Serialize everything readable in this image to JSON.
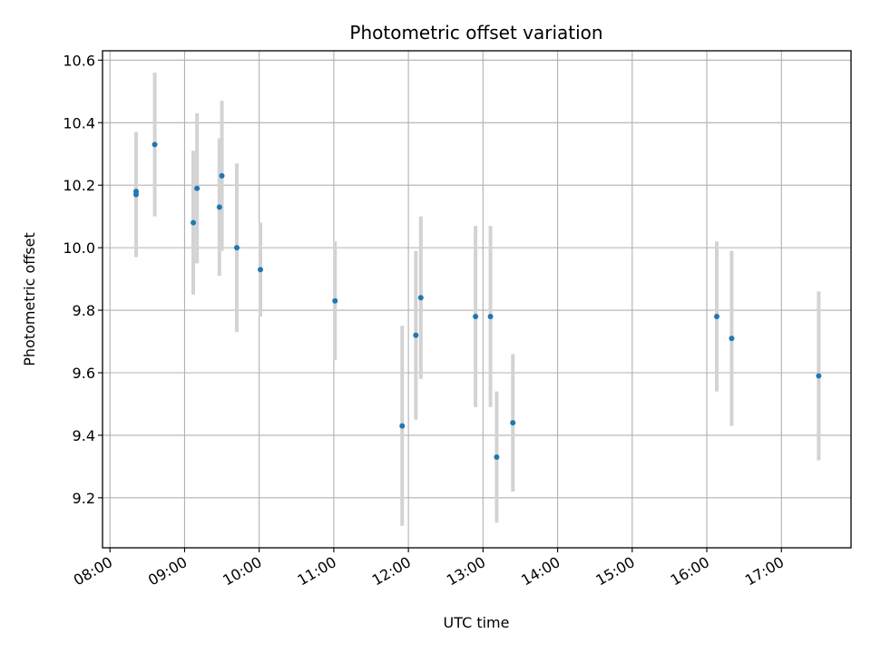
{
  "chart_data": {
    "type": "scatter",
    "title": "Photometric offset variation",
    "xlabel": "UTC time",
    "ylabel": "Photometric offset",
    "xlim": [
      "07:54",
      "17:56"
    ],
    "ylim": [
      9.04,
      10.63
    ],
    "x_ticks": [
      "08:00",
      "09:00",
      "10:00",
      "11:00",
      "12:00",
      "13:00",
      "14:00",
      "15:00",
      "16:00",
      "17:00"
    ],
    "y_ticks": [
      "9.2",
      "9.4",
      "9.6",
      "9.8",
      "10.0",
      "10.2",
      "10.4",
      "10.6"
    ],
    "grid": true,
    "marker_color": "#1f77b4",
    "errorbar_color": "#d3d3d3",
    "points": [
      {
        "time": "08:21",
        "y": 10.17,
        "err": 0.2
      },
      {
        "time": "08:21",
        "y": 10.18,
        "err": 0.19
      },
      {
        "time": "08:36",
        "y": 10.33,
        "err": 0.23
      },
      {
        "time": "09:07",
        "y": 10.08,
        "err": 0.23
      },
      {
        "time": "09:10",
        "y": 10.19,
        "err": 0.24
      },
      {
        "time": "09:28",
        "y": 10.13,
        "err": 0.22
      },
      {
        "time": "09:30",
        "y": 10.23,
        "err": 0.24
      },
      {
        "time": "09:42",
        "y": 10.0,
        "err": 0.27
      },
      {
        "time": "10:01",
        "y": 9.93,
        "err": 0.15
      },
      {
        "time": "11:01",
        "y": 9.83,
        "err": 0.19
      },
      {
        "time": "11:55",
        "y": 9.43,
        "err": 0.32
      },
      {
        "time": "12:06",
        "y": 9.72,
        "err": 0.27
      },
      {
        "time": "12:10",
        "y": 9.84,
        "err": 0.26
      },
      {
        "time": "12:54",
        "y": 9.78,
        "err": 0.29
      },
      {
        "time": "13:06",
        "y": 9.78,
        "err": 0.29
      },
      {
        "time": "13:11",
        "y": 9.33,
        "err": 0.21
      },
      {
        "time": "13:24",
        "y": 9.44,
        "err": 0.22
      },
      {
        "time": "16:08",
        "y": 9.78,
        "err": 0.24
      },
      {
        "time": "16:20",
        "y": 9.71,
        "err": 0.28
      },
      {
        "time": "17:30",
        "y": 9.59,
        "err": 0.27
      }
    ]
  }
}
